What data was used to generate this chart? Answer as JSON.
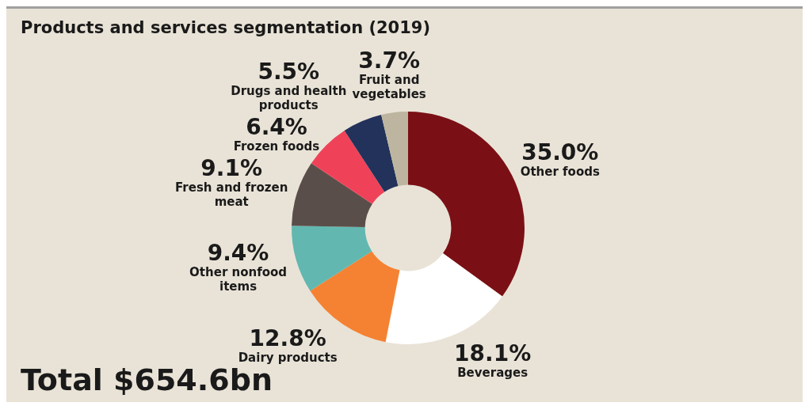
{
  "chart_data": {
    "type": "donut",
    "title": "Products and services segmentation (2019)",
    "categories": [
      "Other foods",
      "Beverages",
      "Dairy products",
      "Other nonfood items",
      "Fresh and frozen meat",
      "Frozen foods",
      "Drugs and health products",
      "Fruit and vegetables"
    ],
    "values": [
      35.0,
      18.1,
      12.8,
      9.4,
      9.1,
      6.4,
      5.5,
      3.7
    ],
    "value_labels": [
      "35.0%",
      "18.1%",
      "12.8%",
      "9.4%",
      "9.1%",
      "6.4%",
      "5.5%",
      "3.7%"
    ],
    "colors": [
      "#7a1015",
      "#ffffff",
      "#f58232",
      "#62b8b0",
      "#5a4e4a",
      "#ef4259",
      "#23325a",
      "#bdb5a0"
    ],
    "annotations": [
      "Total $654.6bn"
    ],
    "legend": false
  }
}
